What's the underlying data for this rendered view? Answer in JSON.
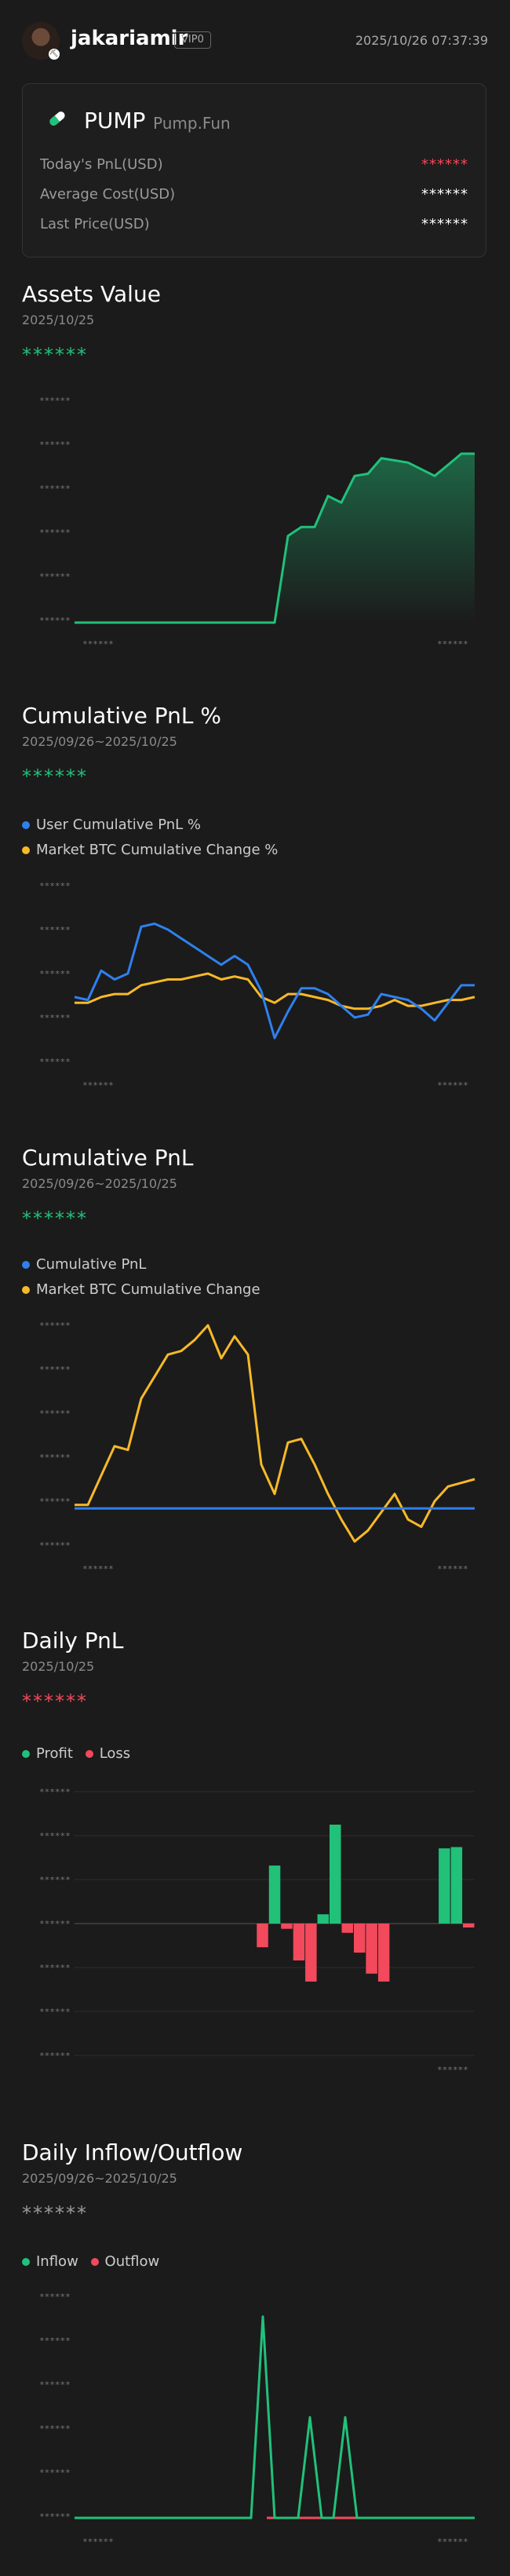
{
  "header": {
    "username": "jakariamir",
    "vip": "VIP0",
    "datetime": "2025/10/26 07:37:39"
  },
  "card": {
    "name": "PUMP",
    "sub": "Pump.Fun",
    "rows": [
      {
        "label": "Today's PnL(USD)",
        "value": "******",
        "color": "#f2495c"
      },
      {
        "label": "Average Cost(USD)",
        "value": "******",
        "color": "#ffffff"
      },
      {
        "label": "Last Price(USD)",
        "value": "******",
        "color": "#ffffff"
      }
    ]
  },
  "assets": {
    "title": "Assets Value",
    "date": "2025/10/25",
    "value": "******",
    "tick": "******"
  },
  "cum_pct": {
    "title": "Cumulative PnL %",
    "date": "2025/09/26~2025/10/25",
    "value": "******",
    "legend_user": "User Cumulative PnL %",
    "legend_market": "Market BTC Cumulative Change %"
  },
  "cum_pnl": {
    "title": "Cumulative PnL",
    "date": "2025/09/26~2025/10/25",
    "value": "******",
    "legend_user": "Cumulative PnL",
    "legend_market": "Market BTC Cumulative Change"
  },
  "daily": {
    "title": "Daily PnL",
    "date": "2025/10/25",
    "value": "******",
    "legend_profit": "Profit",
    "legend_loss": "Loss"
  },
  "flow": {
    "title": "Daily Inflow/Outflow",
    "date": "2025/09/26~2025/10/25",
    "value": "******",
    "legend_in": "Inflow",
    "legend_out": "Outflow"
  },
  "colors": {
    "green": "#21c17a",
    "red": "#f2495c",
    "blue": "#2f80ed",
    "yellow": "#f7b928"
  },
  "chart_data": [
    {
      "type": "area",
      "name": "assets",
      "values": [
        0,
        0,
        0,
        0,
        0,
        0,
        0,
        0,
        0,
        0,
        0,
        0,
        0,
        0,
        0,
        0,
        39,
        43,
        43,
        57,
        54,
        66,
        67,
        74,
        73,
        72,
        69,
        66,
        71,
        76,
        76
      ],
      "ylim": [
        0,
        100
      ]
    },
    {
      "type": "line",
      "name": "cum_pct",
      "series": [
        {
          "key": "user",
          "values": [
            2,
            1,
            11,
            8,
            10,
            26,
            27,
            25,
            22,
            19,
            16,
            13,
            16,
            13,
            4,
            -12,
            -3,
            5,
            5,
            3,
            -1,
            -5,
            -4,
            3,
            2,
            1,
            -2,
            -6,
            0,
            6,
            6
          ]
        },
        {
          "key": "market",
          "values": [
            0,
            0,
            2,
            3,
            3,
            6,
            7,
            8,
            8,
            9,
            10,
            8,
            9,
            8,
            2,
            0,
            3,
            3,
            2,
            1,
            -1,
            -2,
            -2,
            -1,
            1,
            -1,
            -1,
            0,
            1,
            1,
            2
          ]
        }
      ],
      "ylim": [
        -20,
        40
      ]
    },
    {
      "type": "line",
      "name": "cum_pnl",
      "series": [
        {
          "key": "user",
          "values": [
            0,
            0,
            0,
            0,
            0,
            0,
            0,
            0,
            0,
            0,
            0,
            0,
            0,
            0,
            0,
            0,
            0,
            0,
            0,
            0,
            0,
            0,
            0,
            0,
            0,
            0,
            0,
            0,
            0,
            0,
            0
          ]
        },
        {
          "key": "market",
          "values": [
            1,
            1,
            9,
            17,
            16,
            30,
            36,
            42,
            43,
            46,
            50,
            41,
            47,
            42,
            12,
            4,
            18,
            19,
            12,
            4,
            -3,
            -9,
            -6,
            -1,
            4,
            -3,
            -5,
            2,
            6,
            7,
            8
          ]
        }
      ],
      "ylim": [
        -10,
        50
      ]
    },
    {
      "type": "bar",
      "name": "daily",
      "values": [
        0,
        0,
        0,
        0,
        0,
        0,
        0,
        0,
        0,
        0,
        0,
        0,
        0,
        0,
        0,
        -18,
        44,
        -4,
        -28,
        -44,
        7,
        75,
        -7,
        -22,
        -38,
        -44,
        0,
        0,
        0,
        0,
        57,
        58,
        -3
      ],
      "ylim": [
        -100,
        100
      ]
    },
    {
      "type": "line",
      "name": "flow",
      "series": [
        {
          "key": "inflow",
          "values": [
            0,
            0,
            0,
            0,
            0,
            0,
            0,
            0,
            0,
            0,
            0,
            0,
            0,
            0,
            0,
            0,
            100,
            0,
            0,
            0,
            50,
            0,
            0,
            50,
            0,
            0,
            0,
            0,
            0,
            0,
            0,
            0,
            0,
            0,
            0
          ]
        }
      ],
      "ylim": [
        0,
        110
      ]
    }
  ]
}
